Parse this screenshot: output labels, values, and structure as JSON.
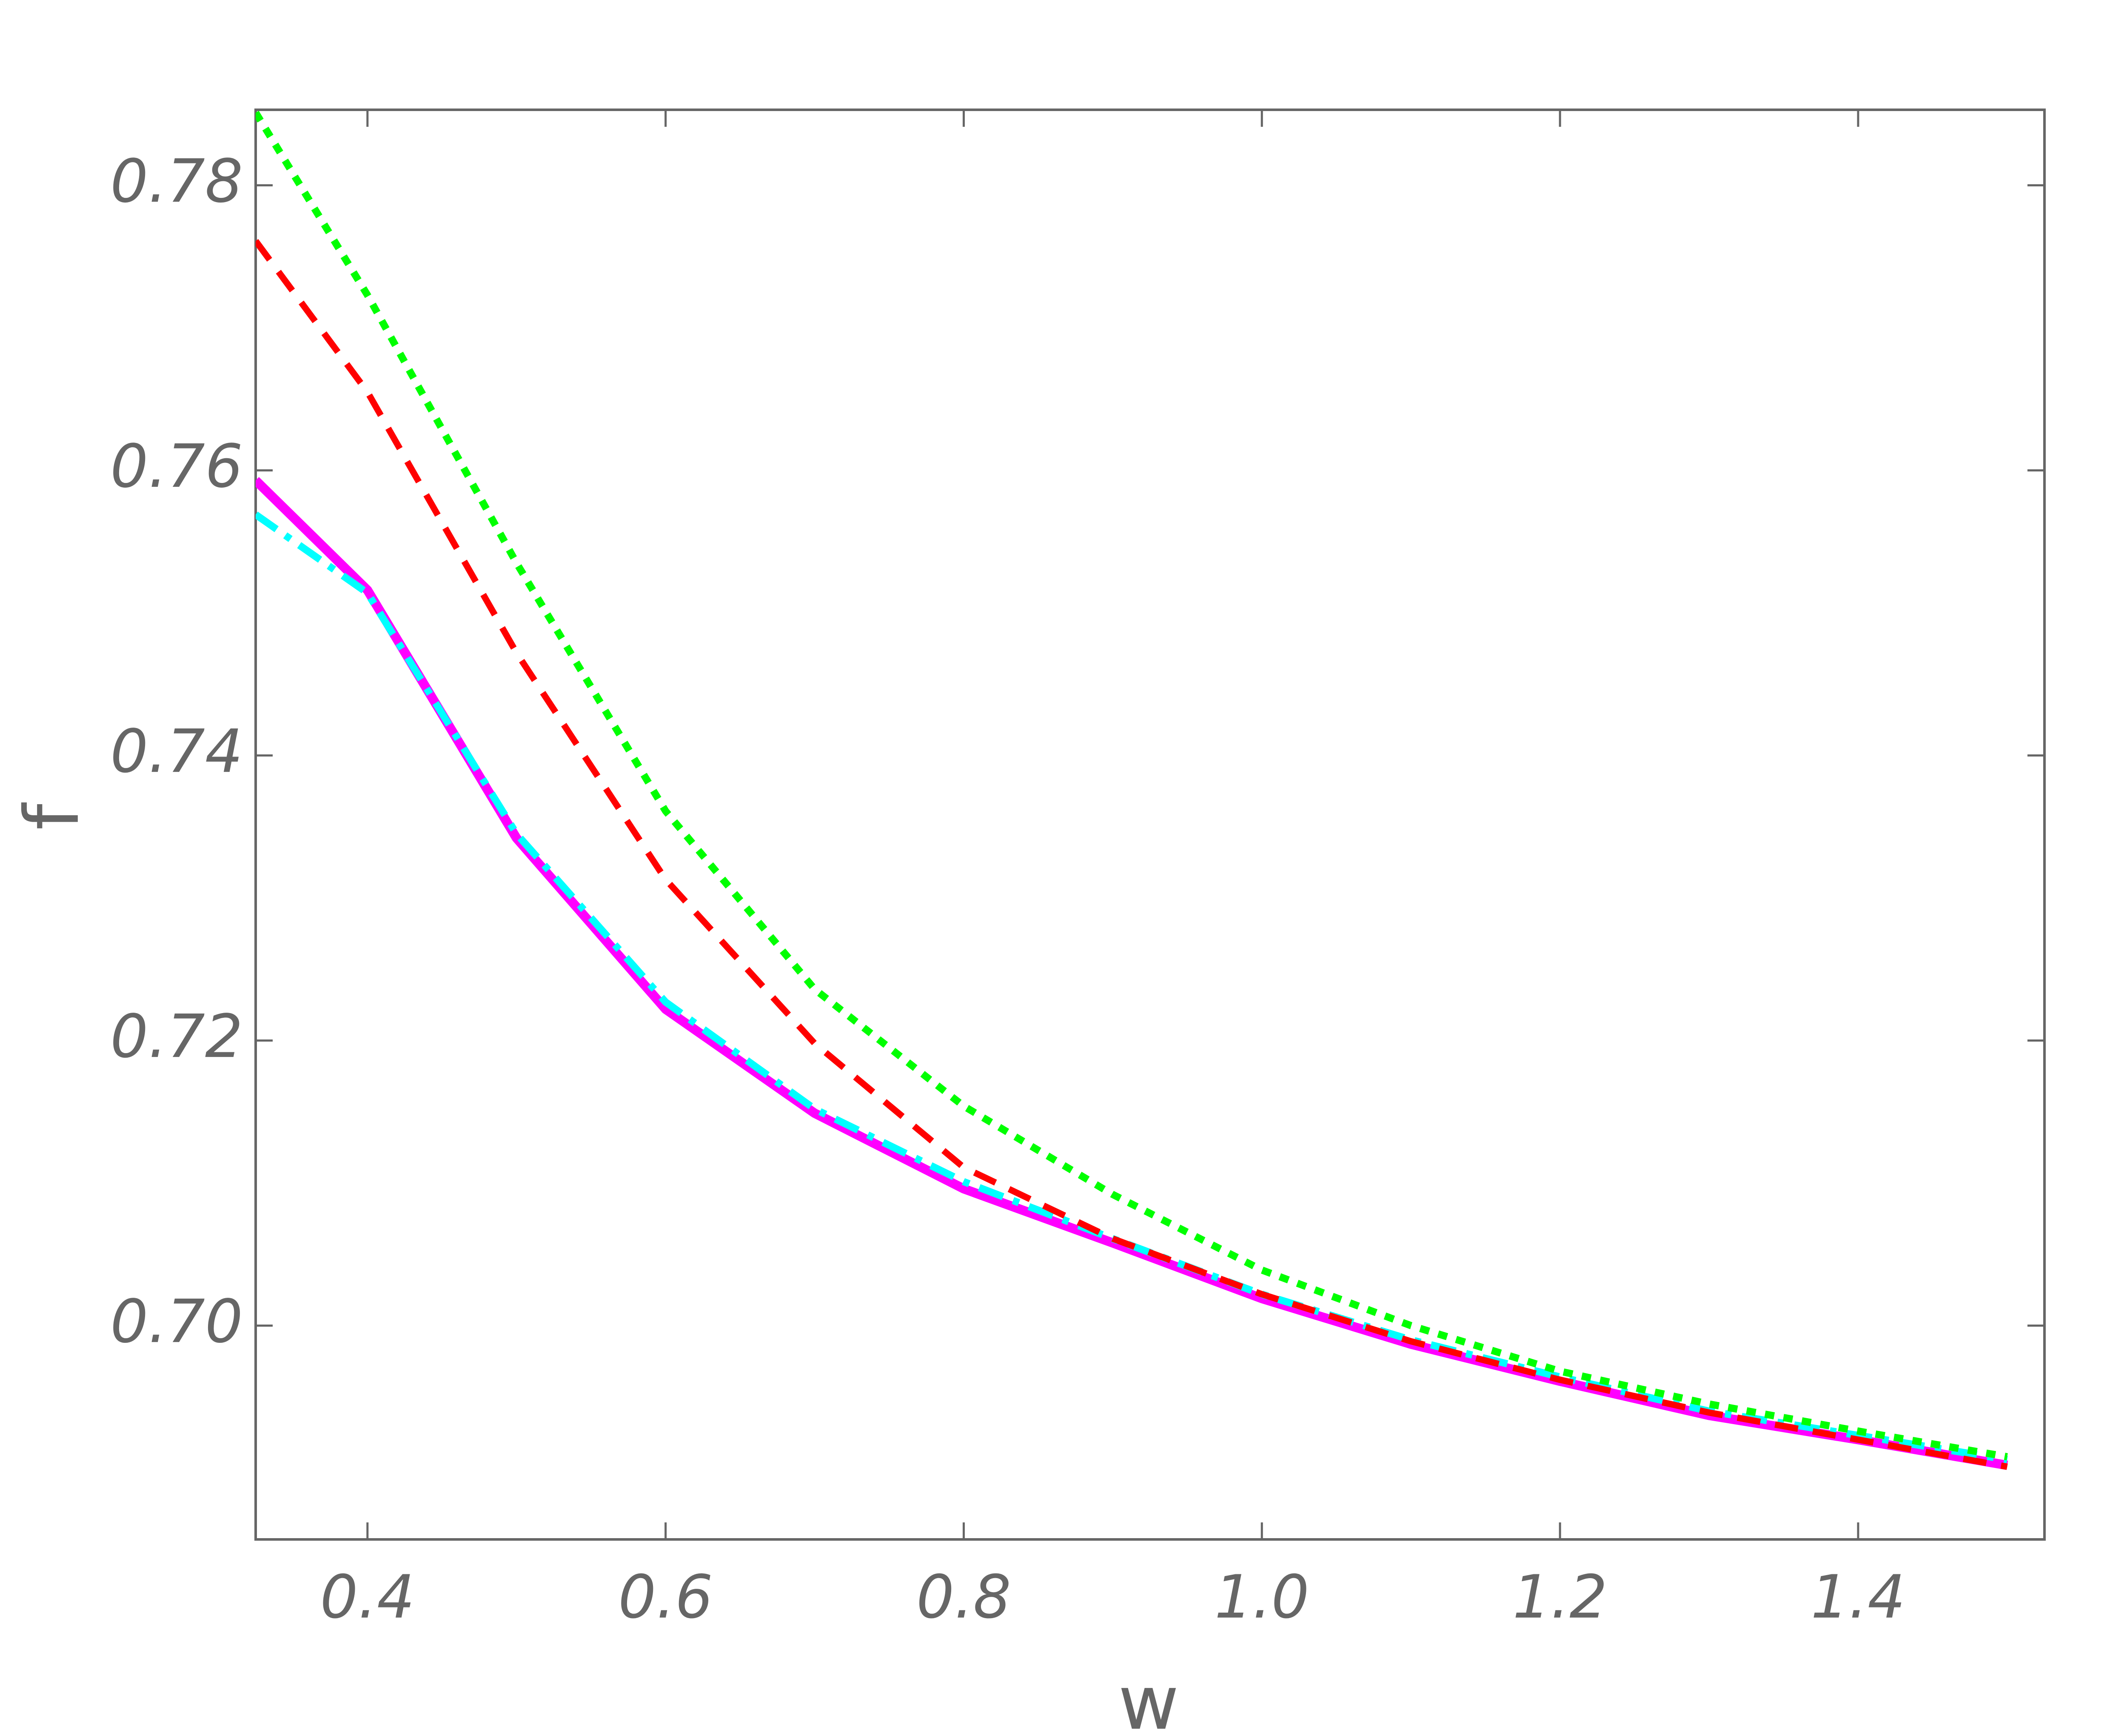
{
  "chart_data": {
    "type": "line",
    "x": [
      0.325,
      0.4,
      0.5,
      0.6,
      0.7,
      0.8,
      0.9,
      1.0,
      1.1,
      1.2,
      1.3,
      1.4,
      1.5
    ],
    "series": [
      {
        "color": "#ff00ff",
        "style": "solid",
        "values": [
          0.7593,
          0.7516,
          0.7342,
          0.7222,
          0.7149,
          0.7096,
          0.7058,
          0.7019,
          0.6987,
          0.6961,
          0.6937,
          0.692,
          0.6902
        ]
      },
      {
        "color": "#00ffff",
        "style": "dashdot",
        "values": [
          0.7569,
          0.7514,
          0.7345,
          0.7227,
          0.7152,
          0.7101,
          0.7061,
          0.7022,
          0.699,
          0.6964,
          0.694,
          0.6923,
          0.6906
        ]
      },
      {
        "color": "#ff0000",
        "style": "dashed",
        "values": [
          0.7761,
          0.7655,
          0.7472,
          0.7313,
          0.7198,
          0.7111,
          0.7061,
          0.7022,
          0.6989,
          0.6962,
          0.6939,
          0.692,
          0.6901
        ]
      },
      {
        "color": "#00ff00",
        "style": "dotted",
        "values": [
          0.7851,
          0.7723,
          0.7535,
          0.7361,
          0.7236,
          0.7154,
          0.7092,
          0.7039,
          0.7,
          0.6968,
          0.6945,
          0.6926,
          0.6908
        ]
      }
    ],
    "xlabel": "w",
    "ylabel": "f",
    "xlim": [
      0.325,
      1.525
    ],
    "ylim": [
      0.685,
      0.7853
    ],
    "xticks": [
      0.4,
      0.6,
      0.8,
      {
        "value": 1.0,
        "label": "1.0"
      },
      1.2,
      1.4
    ],
    "yticks": [
      {
        "value": 0.7,
        "label": "0.70"
      },
      0.72,
      0.74,
      0.76,
      0.78
    ]
  }
}
